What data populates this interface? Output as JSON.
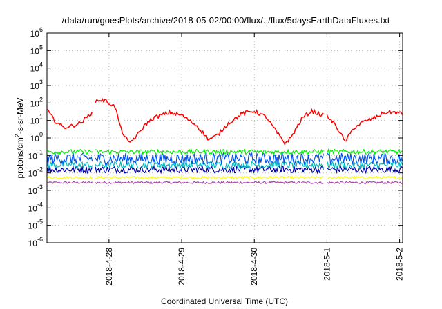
{
  "chart_data": {
    "type": "line",
    "title": "/data/run/goesPlots/archive/2018-05-02/00:00/flux/../flux/5daysEarthDataFluxes.txt",
    "xlabel": "Coordinated Universal Time (UTC)",
    "ylabel": "protons/cm²-s-sr-MeV",
    "y_scale": "log",
    "ylim": [
      1e-06,
      1000000.0
    ],
    "y_ticks": [
      {
        "value": 1e-06,
        "base": "10",
        "exp": "-6"
      },
      {
        "value": 1e-05,
        "base": "10",
        "exp": "-5"
      },
      {
        "value": 0.0001,
        "base": "10",
        "exp": "-4"
      },
      {
        "value": 0.001,
        "base": "10",
        "exp": "-3"
      },
      {
        "value": 0.01,
        "base": "10",
        "exp": "-2"
      },
      {
        "value": 0.1,
        "base": "10",
        "exp": "-1"
      },
      {
        "value": 1.0,
        "base": "10",
        "exp": "0"
      },
      {
        "value": 10.0,
        "base": "10",
        "exp": "1"
      },
      {
        "value": 100.0,
        "base": "10",
        "exp": "2"
      },
      {
        "value": 1000.0,
        "base": "10",
        "exp": "3"
      },
      {
        "value": 10000.0,
        "base": "10",
        "exp": "4"
      },
      {
        "value": 100000.0,
        "base": "10",
        "exp": "5"
      },
      {
        "value": 1000000.0,
        "base": "10",
        "exp": "6"
      }
    ],
    "xlim": [
      "2018-04-27 03:30",
      "2018-05-02 01:00"
    ],
    "x_ticks": [
      {
        "value": "2018-04-28 00:00",
        "label": "2018-4-28"
      },
      {
        "value": "2018-04-29 00:00",
        "label": "2018-4-29"
      },
      {
        "value": "2018-04-30 00:00",
        "label": "2018-4-30"
      },
      {
        "value": "2018-05-01 00:00",
        "label": "2018-5-1"
      },
      {
        "value": "2018-05-02 00:00",
        "label": "2018-5-2"
      }
    ],
    "grid": true,
    "data_gaps": [
      [
        "2018-04-27 18:30",
        "2018-04-27 19:30"
      ],
      [
        "2018-04-30 23:00",
        "2018-05-01 00:00"
      ]
    ],
    "series": [
      {
        "color": "#ff0000",
        "x": [
          "2018-04-27 03:30",
          "2018-04-27 06:00",
          "2018-04-27 09:00",
          "2018-04-27 12:00",
          "2018-04-27 15:00",
          "2018-04-27 18:00",
          "2018-04-27 19:30",
          "2018-04-27 21:00",
          "2018-04-27 23:00",
          "2018-04-28 02:00",
          "2018-04-28 04:00",
          "2018-04-28 06:30",
          "2018-04-28 09:00",
          "2018-04-28 12:00",
          "2018-04-28 15:00",
          "2018-04-28 20:00",
          "2018-04-29 00:00",
          "2018-04-29 05:00",
          "2018-04-29 09:00",
          "2018-04-29 12:00",
          "2018-04-29 15:00",
          "2018-04-29 20:00",
          "2018-04-30 00:00",
          "2018-04-30 04:00",
          "2018-04-30 08:00",
          "2018-04-30 10:00",
          "2018-04-30 12:00",
          "2018-04-30 16:00",
          "2018-04-30 19:00",
          "2018-04-30 22:30",
          "2018-05-01 00:00",
          "2018-05-01 03:00",
          "2018-05-01 06:00",
          "2018-05-01 09:00",
          "2018-05-01 12:00",
          "2018-05-01 16:00",
          "2018-05-01 19:00",
          "2018-05-01 22:00",
          "2018-05-02 00:30",
          "2018-05-02 01:00"
        ],
        "y": [
          40,
          10,
          4,
          5,
          8,
          25,
          130,
          150,
          130,
          60,
          3,
          0.5,
          1.2,
          6,
          15,
          28,
          20,
          5,
          0.8,
          1.5,
          6,
          25,
          35,
          15,
          1.5,
          0.5,
          1,
          15,
          35,
          20,
          18,
          5,
          0.6,
          4,
          8,
          15,
          28,
          30,
          25,
          22
        ]
      },
      {
        "color": "#00ee00",
        "y": [
          0.12,
          0.22
        ]
      },
      {
        "color": "#0055ee",
        "y": [
          0.03,
          0.14
        ]
      },
      {
        "color": "#00bbbb",
        "y": [
          0.018,
          0.045
        ]
      },
      {
        "color": "#0000aa",
        "y": [
          0.01,
          0.025
        ]
      },
      {
        "color": "#ffff00",
        "y": [
          0.0045,
          0.0065
        ]
      },
      {
        "color": "#aa44aa",
        "y": [
          0.0024,
          0.0032
        ]
      }
    ]
  }
}
